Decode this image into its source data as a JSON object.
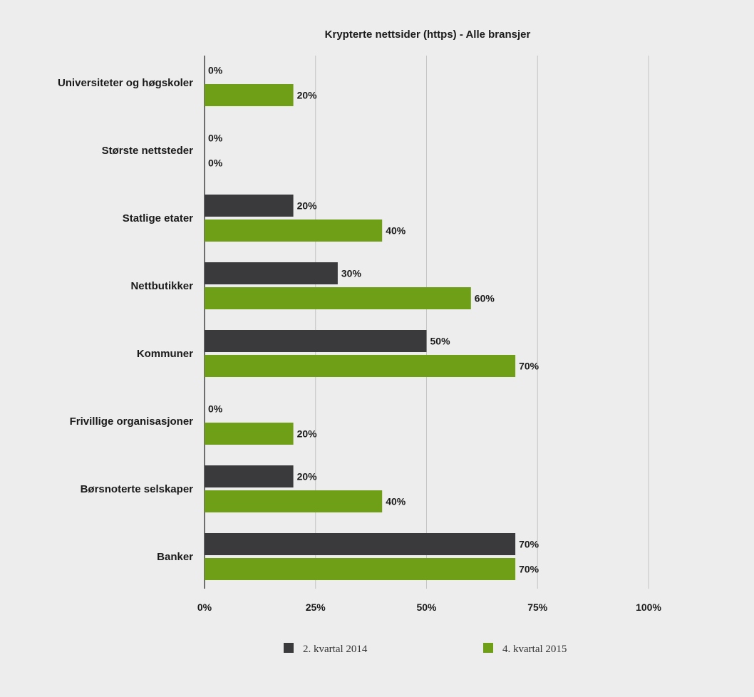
{
  "chart_data": {
    "type": "bar",
    "orientation": "horizontal",
    "title": "Krypterte nettsider (https) - Alle bransjer",
    "categories": [
      "Universiteter og høgskoler",
      "Største nettsteder",
      "Statlige etater",
      "Nettbutikker",
      "Kommuner",
      "Frivillige organisasjoner",
      "Børsnoterte selskaper",
      "Banker"
    ],
    "series": [
      {
        "name": "2. kvartal 2014",
        "color": "#3a3a3c",
        "values": [
          0,
          0,
          20,
          30,
          50,
          0,
          20,
          70
        ],
        "labels": [
          "0%",
          "0%",
          "20%",
          "30%",
          "50%",
          "0%",
          "20%",
          "70%"
        ]
      },
      {
        "name": "4. kvartal 2015",
        "color": "#6f9e17",
        "values": [
          20,
          0,
          40,
          60,
          70,
          20,
          40,
          70
        ],
        "labels": [
          "20%",
          "0%",
          "40%",
          "60%",
          "70%",
          "20%",
          "40%",
          "70%"
        ]
      }
    ],
    "xlim": [
      0,
      100
    ],
    "xticks": [
      0,
      25,
      50,
      75,
      100
    ],
    "xtick_labels": [
      "0%",
      "25%",
      "50%",
      "75%",
      "100%"
    ],
    "grid": true,
    "legend_position": "bottom"
  }
}
